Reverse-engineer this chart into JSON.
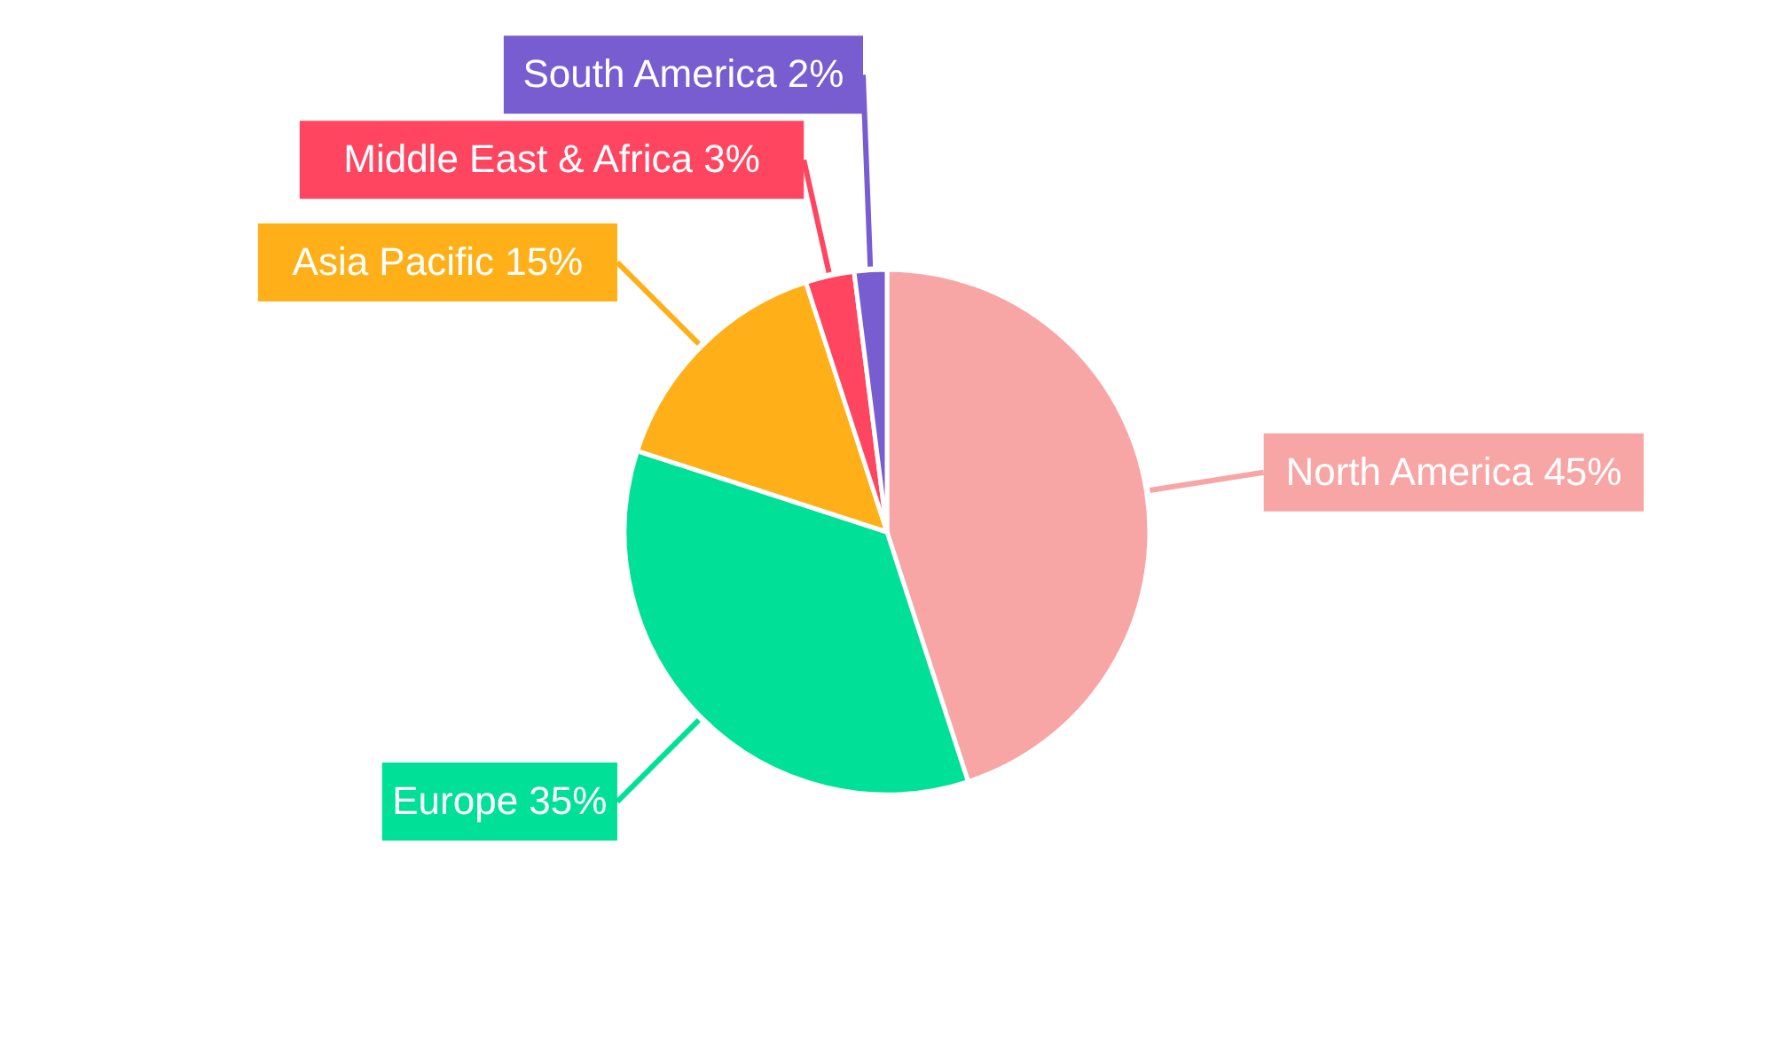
{
  "chart_data": {
    "type": "pie",
    "categories": [
      "North America",
      "Europe",
      "Asia Pacific",
      "Middle East & Africa",
      "South America"
    ],
    "values": [
      45,
      35,
      15,
      3,
      2
    ],
    "value_labels": [
      "45%",
      "35%",
      "15%",
      "3%",
      "2%"
    ],
    "colors": [
      "#f8a5a6",
      "#00e096",
      "#ffb019",
      "#ff4560",
      "#775dd0"
    ]
  }
}
